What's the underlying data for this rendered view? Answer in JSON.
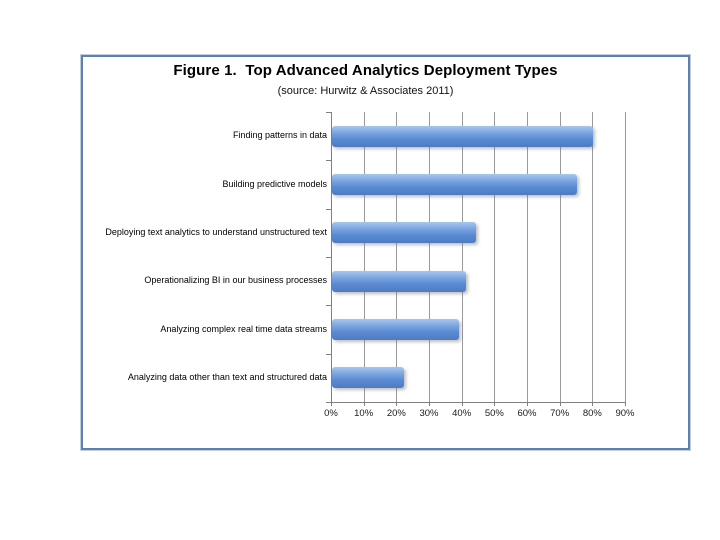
{
  "frame": {
    "border_color": "#5d81ac",
    "background": "#ffffff"
  },
  "chart_data": {
    "type": "bar",
    "orientation": "horizontal",
    "title": "Figure 1.  Top Advanced Analytics Deployment Types",
    "subtitle": "(source: Hurwitz & Associates 2011)",
    "categories": [
      "Finding patterns in data",
      "Building predictive models",
      "Deploying text analytics to understand unstructured text",
      "Operationalizing BI in our business processes",
      "Analyzing complex real time data streams",
      "Analyzing data other than text and structured data"
    ],
    "values": [
      80,
      75,
      44,
      41,
      39,
      22
    ],
    "unit": "%",
    "xlabel": "",
    "ylabel": "",
    "xlim": [
      0,
      90
    ],
    "x_tick_step": 10,
    "x_tick_labels": [
      "0%",
      "10%",
      "20%",
      "30%",
      "40%",
      "50%",
      "60%",
      "70%",
      "80%",
      "90%"
    ],
    "grid": true,
    "legend": false,
    "bar_color": "#5b8ad2",
    "bar_gradient_top": "#a6c6ee",
    "bar_gradient_bottom": "#4c7cc4",
    "gridline_color": "#9a9a9a",
    "axis_color": "#7f7f7f"
  }
}
